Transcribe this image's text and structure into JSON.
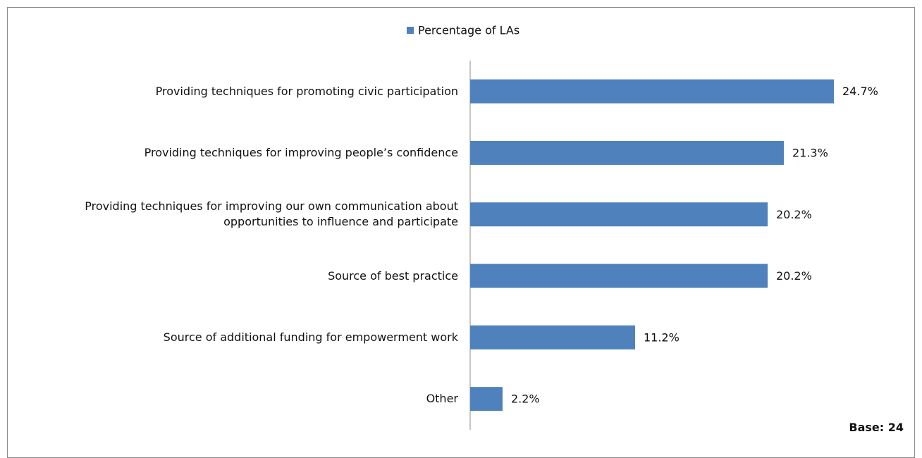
{
  "chart_data": {
    "type": "hbar",
    "legend": "Percentage of LAs",
    "categories": [
      "Providing techniques for promoting civic participation",
      "Providing techniques for improving people’s confidence",
      "Providing techniques for improving our own communication about opportunities to influence and participate",
      "Source of best practice",
      "Source of additional funding for empowerment work",
      "Other"
    ],
    "series": [
      {
        "name": "Percentage of LAs",
        "color": "#4f81bd",
        "values": [
          24.7,
          21.3,
          20.2,
          20.2,
          11.2,
          2.2
        ],
        "value_labels": [
          "24.7%",
          "21.3%",
          "20.2%",
          "20.2%",
          "11.2%",
          "2.2%"
        ]
      }
    ],
    "annotation": "Base: 24"
  }
}
